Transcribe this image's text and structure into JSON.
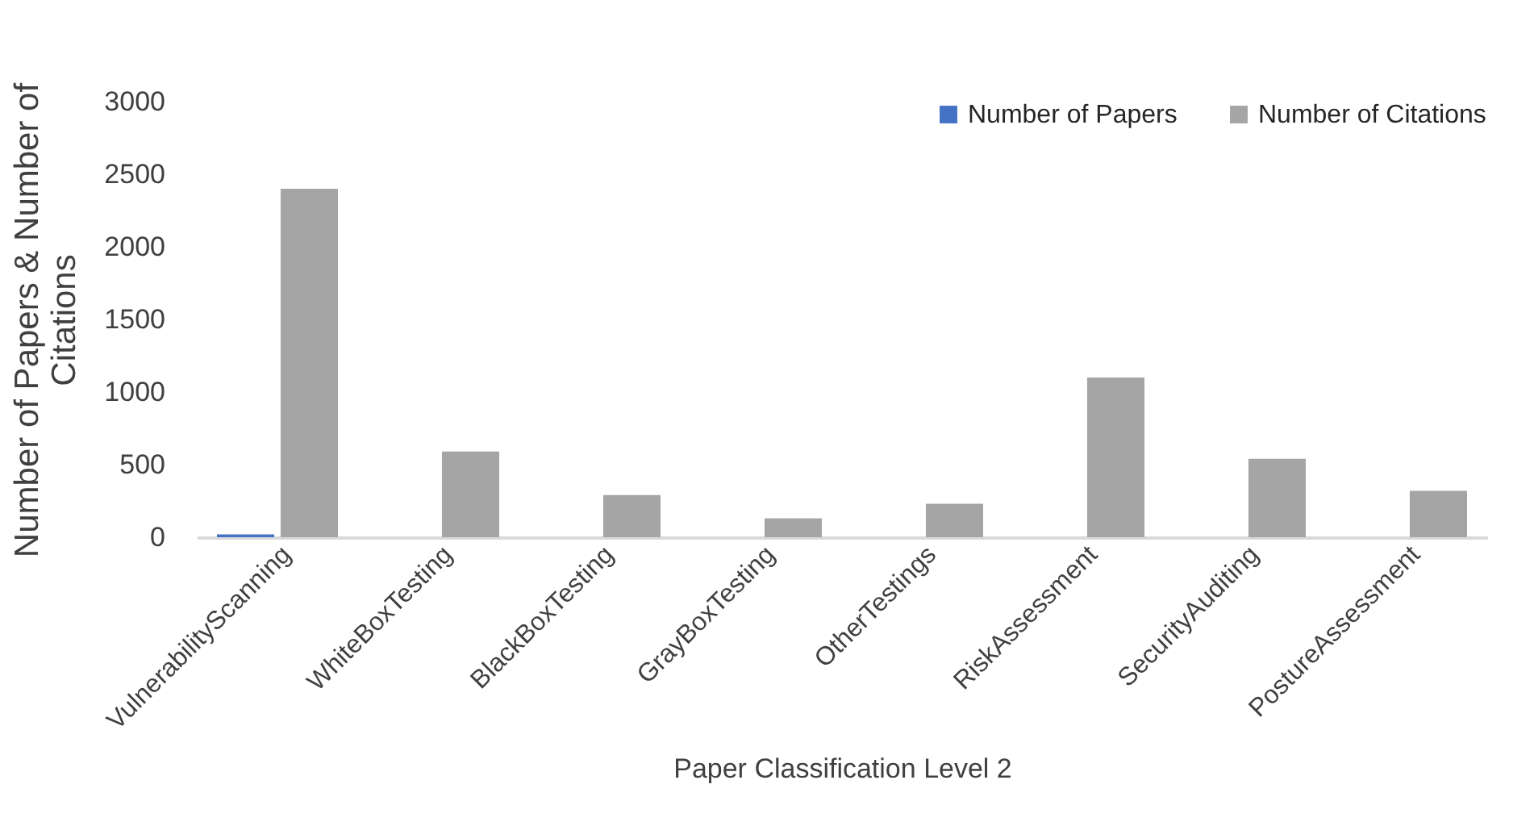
{
  "chart_data": {
    "type": "bar",
    "xlabel": "Paper Classification Level 2",
    "ylabel": "Number of Papers & Number of Citations",
    "categories": [
      "VulnerabilityScanning",
      "WhiteBoxTesting",
      "BlackBoxTesting",
      "GrayBoxTesting",
      "OtherTestings",
      "RiskAssessment",
      "SecurityAuditing",
      "PostureAssessment"
    ],
    "series": [
      {
        "name": "Number of Papers",
        "color": "#4472c4",
        "values": [
          20,
          0,
          0,
          0,
          0,
          0,
          0,
          0
        ]
      },
      {
        "name": "Number of Citations",
        "color": "#a5a5a5",
        "values": [
          2400,
          590,
          290,
          130,
          230,
          1100,
          540,
          320
        ]
      }
    ],
    "ylim": [
      0,
      3000
    ],
    "yticks": [
      0,
      500,
      1000,
      1500,
      2000,
      2500,
      3000
    ],
    "grid": false,
    "legend": "top right"
  }
}
